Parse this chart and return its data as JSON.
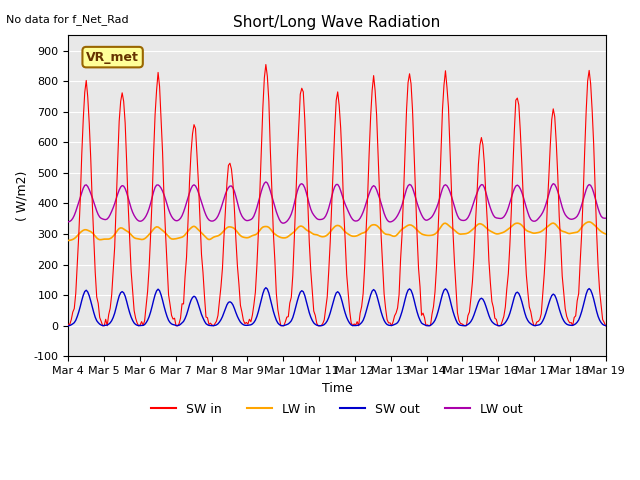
{
  "title": "Short/Long Wave Radiation",
  "xlabel": "Time",
  "ylabel": "( W/m2)",
  "ylim": [
    -100,
    950
  ],
  "yticks": [
    -100,
    0,
    100,
    200,
    300,
    400,
    500,
    600,
    700,
    800,
    900
  ],
  "xlim": [
    0,
    15
  ],
  "xtick_labels": [
    "Mar 4",
    "Mar 5",
    "Mar 6",
    "Mar 7",
    "Mar 8",
    "Mar 9",
    "Mar 10",
    "Mar 11",
    "Mar 12",
    "Mar 13",
    "Mar 14",
    "Mar 15",
    "Mar 16",
    "Mar 17",
    "Mar 18",
    "Mar 19"
  ],
  "colors": {
    "SW_in": "#ff0000",
    "LW_in": "#ffa500",
    "SW_out": "#0000cc",
    "LW_out": "#aa00aa"
  },
  "bg_color": "#e8e8e8",
  "legend_items": [
    "SW in",
    "LW in",
    "SW out",
    "LW out"
  ],
  "annotation_text": "No data for f_Net_Rad",
  "legend_box_text": "VR_met",
  "n_days": 15
}
